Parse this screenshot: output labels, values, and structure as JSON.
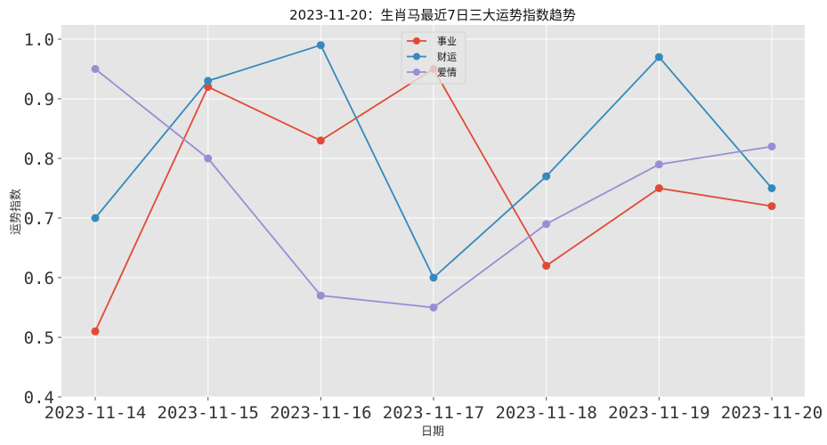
{
  "chart_data": {
    "type": "line",
    "title": "2023-11-20：生肖马最近7日三大运势指数趋势",
    "xlabel": "日期",
    "ylabel": "运势指数",
    "categories": [
      "2023-11-14",
      "2023-11-15",
      "2023-11-16",
      "2023-11-17",
      "2023-11-18",
      "2023-11-19",
      "2023-11-20"
    ],
    "ylim": [
      0.4,
      1.0
    ],
    "yticks": [
      "0.4",
      "0.5",
      "0.6",
      "0.7",
      "0.8",
      "0.9",
      "1.0"
    ],
    "grid": true,
    "legend_position": "top-center",
    "series": [
      {
        "name": "事业",
        "color": "#E24A33",
        "values": [
          0.51,
          0.92,
          0.83,
          0.95,
          0.62,
          0.75,
          0.72
        ]
      },
      {
        "name": "财运",
        "color": "#348ABD",
        "values": [
          0.7,
          0.93,
          0.99,
          0.6,
          0.77,
          0.97,
          0.75
        ]
      },
      {
        "name": "爱情",
        "color": "#988ED5",
        "values": [
          0.95,
          0.8,
          0.57,
          0.55,
          0.69,
          0.79,
          0.82
        ]
      }
    ],
    "background_color": "#E5E5E5",
    "grid_color": "#FFFFFF"
  }
}
